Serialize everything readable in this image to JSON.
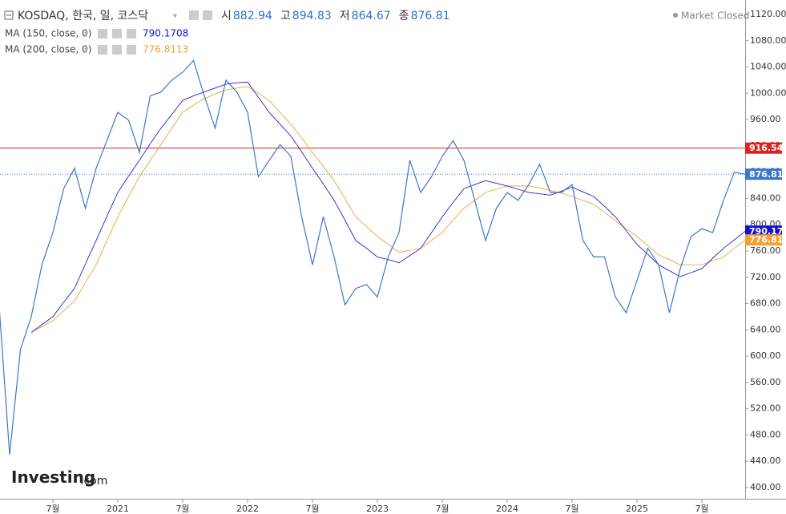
{
  "chart_data": {
    "type": "line",
    "title": "KOSDAQ, 한국, 일, 코스닥",
    "status": "Market Closed",
    "brand": "Investing",
    "brand_suffix": ".com",
    "quote": [
      {
        "label": "시",
        "value": 882.94
      },
      {
        "label": "고",
        "value": 894.83
      },
      {
        "label": "저",
        "value": 864.67
      },
      {
        "label": "종",
        "value": 876.81
      }
    ],
    "x": [
      "2020-02",
      "2020-03",
      "2020-04",
      "2020-05",
      "2020-06",
      "2020-07",
      "2020-08",
      "2020-09",
      "2020-10",
      "2020-11",
      "2020-12",
      "2021-01",
      "2021-02",
      "2021-03",
      "2021-04",
      "2021-05",
      "2021-06",
      "2021-07",
      "2021-08",
      "2021-09",
      "2021-10",
      "2021-11",
      "2021-12",
      "2022-01",
      "2022-02",
      "2022-03",
      "2022-04",
      "2022-05",
      "2022-06",
      "2022-07",
      "2022-08",
      "2022-09",
      "2022-10",
      "2022-11",
      "2022-12",
      "2023-01",
      "2023-02",
      "2023-03",
      "2023-04",
      "2023-05",
      "2023-06",
      "2023-07",
      "2023-08",
      "2023-09",
      "2023-10",
      "2023-11",
      "2023-12",
      "2024-01",
      "2024-02",
      "2024-03",
      "2024-04",
      "2024-05",
      "2024-06",
      "2024-07",
      "2024-08",
      "2024-09",
      "2024-10",
      "2024-11",
      "2024-12",
      "2025-01",
      "2025-02",
      "2025-03",
      "2025-04",
      "2025-05",
      "2025-06",
      "2025-07",
      "2025-08",
      "2025-09",
      "2025-10",
      "2025-11"
    ],
    "series": [
      {
        "name": "KOSDAQ",
        "color": "#3a78c9",
        "width": 1.2,
        "values": [
          684,
          450,
          610,
          660,
          740,
          788,
          855,
          886,
          825,
          886,
          928,
          971,
          959,
          910,
          996,
          1002,
          1020,
          1032,
          1050,
          996,
          947,
          1020,
          1002,
          971,
          873,
          898,
          922,
          904,
          812,
          739,
          812,
          751,
          678,
          703,
          709,
          690,
          751,
          788,
          898,
          849,
          873,
          904,
          928,
          898,
          837,
          776,
          825,
          849,
          837,
          861,
          892,
          849,
          849,
          861,
          776,
          751,
          751,
          690,
          666,
          715,
          764,
          739,
          666,
          733,
          782,
          794,
          788,
          837,
          880,
          876.81
        ],
        "tag_color": "#3a78c9"
      },
      {
        "name": "MA (150, close, 0)",
        "color": "#2222cc",
        "width": 0.9,
        "values": [
          null,
          null,
          null,
          636,
          648,
          660,
          682,
          703,
          740,
          776,
          813,
          849,
          874,
          898,
          923,
          947,
          968,
          989,
          996,
          1002,
          1008,
          1014,
          1016,
          1017,
          994,
          971,
          953,
          935,
          911,
          886,
          862,
          837,
          807,
          776,
          764,
          751,
          747,
          742,
          753,
          764,
          788,
          812,
          834,
          855,
          861,
          867,
          863,
          859,
          854,
          849,
          847,
          845,
          851,
          857,
          850,
          843,
          828,
          812,
          791,
          770,
          755,
          739,
          730,
          721,
          727,
          733,
          749,
          764,
          777,
          790.1708
        ],
        "tag": "790.17",
        "tag_color": "#1010d0"
      },
      {
        "name": "MA (200, close, 0)",
        "color": "#f5a033",
        "width": 0.9,
        "values": [
          null,
          null,
          null,
          636,
          645,
          654,
          669,
          684,
          712,
          739,
          776,
          812,
          843,
          873,
          898,
          922,
          947,
          971,
          982,
          992,
          999,
          1005,
          1008,
          1010,
          1000,
          989,
          971,
          953,
          932,
          910,
          889,
          867,
          840,
          812,
          797,
          782,
          770,
          758,
          761,
          764,
          776,
          788,
          807,
          825,
          837,
          849,
          854,
          859,
          859,
          859,
          856,
          852,
          848,
          843,
          837,
          831,
          819,
          806,
          794,
          782,
          768,
          754,
          747,
          739,
          739,
          739,
          745,
          751,
          764,
          776.8113
        ],
        "tag": "776.81",
        "tag_color": "#f5a033"
      }
    ],
    "hline": {
      "value": 916.54,
      "color": "#e02020"
    },
    "ylim": [
      400,
      1120
    ],
    "yticks": [
      {
        "value": 400,
        "label": "400.00"
      },
      {
        "value": 440,
        "label": "440.00"
      },
      {
        "value": 480,
        "label": "480.00"
      },
      {
        "value": 520,
        "label": "520.00"
      },
      {
        "value": 560,
        "label": "560.00"
      },
      {
        "value": 600,
        "label": "600.00"
      },
      {
        "value": 640,
        "label": "640.00"
      },
      {
        "value": 680,
        "label": "680.00"
      },
      {
        "value": 720,
        "label": "720.00"
      },
      {
        "value": 760,
        "label": "760.00"
      },
      {
        "value": 800,
        "label": "800.00"
      },
      {
        "value": 840,
        "label": "840.00"
      },
      {
        "value": 880,
        "label": "880.00"
      },
      {
        "value": 920,
        "label": "920.00"
      },
      {
        "value": 960,
        "label": "960.00"
      },
      {
        "value": 1000,
        "label": "1000.00"
      },
      {
        "value": 1040,
        "label": "1040.00"
      },
      {
        "value": 1080,
        "label": "1080.00"
      },
      {
        "value": 1120,
        "label": "1120.00"
      }
    ],
    "xticks": [
      {
        "value": "2020-07",
        "label": "7월"
      },
      {
        "value": "2021-01",
        "label": "2021"
      },
      {
        "value": "2021-07",
        "label": "7월"
      },
      {
        "value": "2022-01",
        "label": "2022"
      },
      {
        "value": "2022-07",
        "label": "7월"
      },
      {
        "value": "2023-01",
        "label": "2023"
      },
      {
        "value": "2023-07",
        "label": "7월"
      },
      {
        "value": "2024-01",
        "label": "2024"
      },
      {
        "value": "2024-07",
        "label": "7월"
      },
      {
        "value": "2025-01",
        "label": "2025"
      },
      {
        "value": "2025-07",
        "label": "7월"
      }
    ],
    "grid": false
  }
}
